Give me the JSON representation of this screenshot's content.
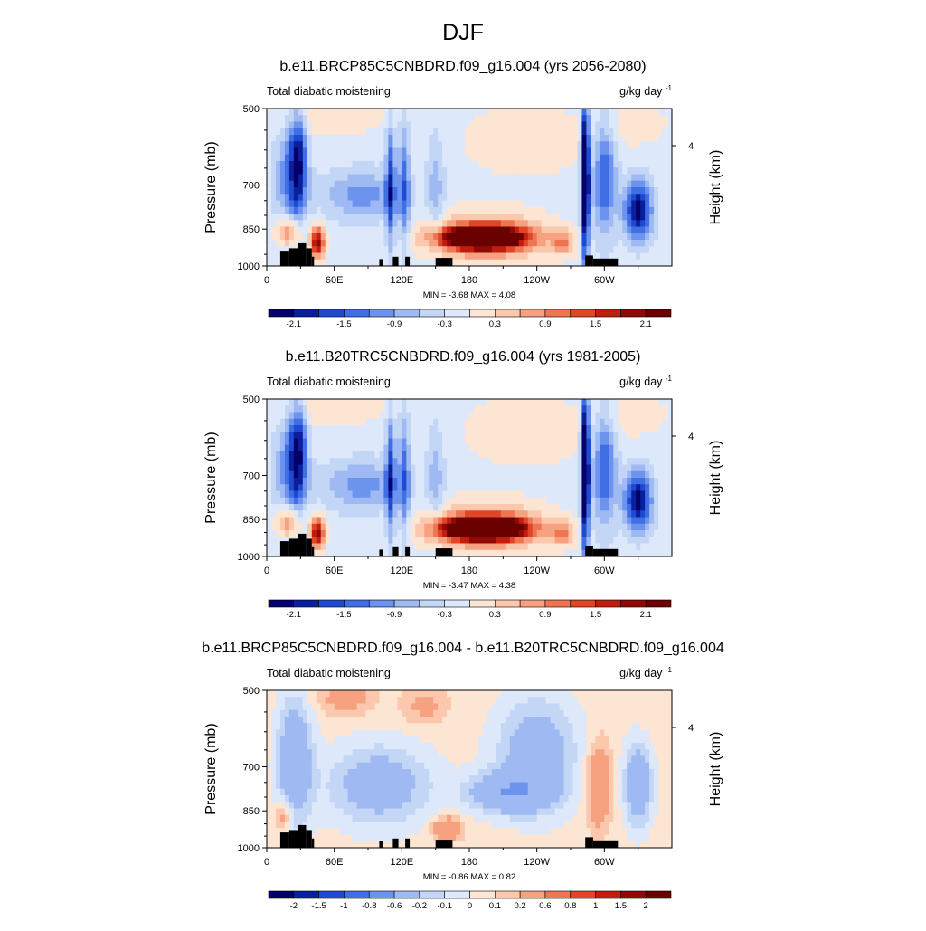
{
  "page": {
    "title": "DJF"
  },
  "chart_data": [
    {
      "type": "contour",
      "title": "b.e11.BRCP85C5CNBDRD.f09_g16.004 (yrs 2056-2080)",
      "left_string": "Total diabatic moistening",
      "units_base": "g/kg day",
      "units_exp": "-1",
      "ylabel": "Pressure (mb)",
      "ylabel_right": "Height (km)",
      "y_ticks": [
        "500",
        "700",
        "850",
        "1000"
      ],
      "y_right_ticks": [
        "4"
      ],
      "x_ticks": [
        "0",
        "60E",
        "120E",
        "180",
        "120W",
        "60W"
      ],
      "stats": "MIN = -3.68 MAX = 4.08",
      "min": -3.68,
      "max": 4.08,
      "colorbar_labels": [
        "-2.1",
        "-1.5",
        "-0.9",
        "-0.3",
        "0.3",
        "0.9",
        "1.5",
        "2.1"
      ]
    },
    {
      "type": "contour",
      "title": "b.e11.B20TRC5CNBDRD.f09_g16.004 (yrs 1981-2005)",
      "left_string": "Total diabatic moistening",
      "units_base": "g/kg day",
      "units_exp": "-1",
      "ylabel": "Pressure (mb)",
      "ylabel_right": "Height (km)",
      "y_ticks": [
        "500",
        "700",
        "850",
        "1000"
      ],
      "y_right_ticks": [
        "4"
      ],
      "x_ticks": [
        "0",
        "60E",
        "120E",
        "180",
        "120W",
        "60W"
      ],
      "stats": "MIN = -3.47 MAX = 4.38",
      "min": -3.47,
      "max": 4.38,
      "colorbar_labels": [
        "-2.1",
        "-1.5",
        "-0.9",
        "-0.3",
        "0.3",
        "0.9",
        "1.5",
        "2.1"
      ]
    },
    {
      "type": "contour",
      "title": "b.e11.BRCP85C5CNBDRD.f09_g16.004 - b.e11.B20TRC5CNBDRD.f09_g16.004",
      "left_string": "Total diabatic moistening",
      "units_base": "g/kg day",
      "units_exp": "-1",
      "ylabel": "Pressure (mb)",
      "ylabel_right": "Height (km)",
      "y_ticks": [
        "500",
        "700",
        "850",
        "1000"
      ],
      "y_right_ticks": [
        "4"
      ],
      "x_ticks": [
        "0",
        "60E",
        "120E",
        "180",
        "120W",
        "60W"
      ],
      "stats": "MIN = -0.86 MAX = 0.82",
      "min": -0.86,
      "max": 0.82,
      "colorbar_labels": [
        "-2",
        "-1.5",
        "-1",
        "-0.8",
        "-0.6",
        "-0.2",
        "-0.1",
        "0",
        "0.1",
        "0.2",
        "0.6",
        "0.8",
        "1",
        "1.5",
        "2"
      ]
    }
  ],
  "palette": [
    "#03006b",
    "#0a1f9c",
    "#1f49cf",
    "#3f6ee5",
    "#6c93ee",
    "#9fb9f2",
    "#c3d6f5",
    "#dde9fa",
    "#fde5d3",
    "#fbc8ad",
    "#f6a17f",
    "#ee7452",
    "#df4526",
    "#c11d0e",
    "#8f0a06",
    "#6b0000"
  ]
}
